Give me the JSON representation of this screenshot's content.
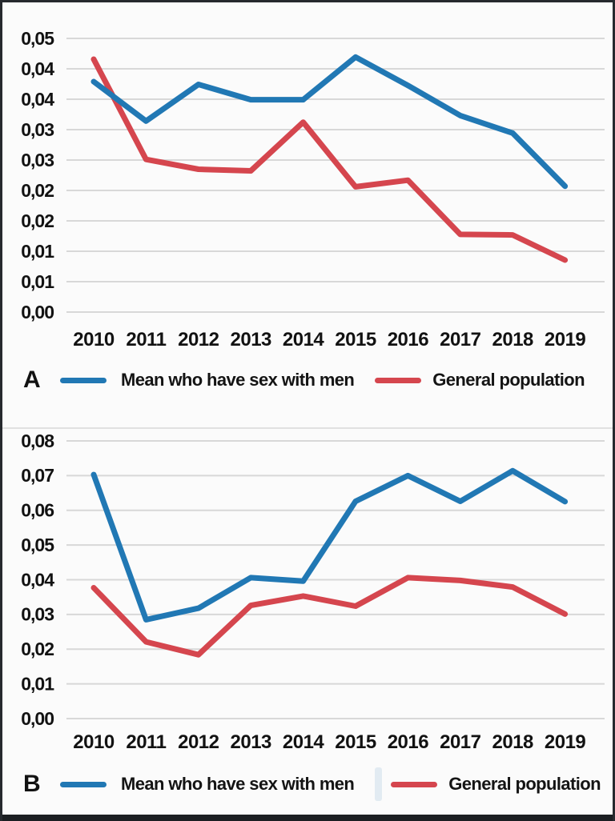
{
  "figure": {
    "background": "#fbfbfb",
    "border_color": "#26292e",
    "gridline_color": "#d8d8d8",
    "text_color": "#121212"
  },
  "panels": [
    {
      "label": "A",
      "legend": [
        {
          "name": "Mean who have sex with men",
          "color": "#2178b4"
        },
        {
          "name": "General population",
          "color": "#d5464e"
        }
      ]
    },
    {
      "label": "B",
      "legend": [
        {
          "name": "Mean who have sex with men",
          "color": "#2178b4"
        },
        {
          "name": "General population",
          "color": "#d5464e"
        }
      ]
    }
  ],
  "chart_data": [
    {
      "panel": "A",
      "type": "line",
      "title": "",
      "xlabel": "",
      "ylabel": "",
      "grid": true,
      "legend_position": "bottom",
      "categories": [
        "2010",
        "2011",
        "2012",
        "2013",
        "2014",
        "2015",
        "2016",
        "2017",
        "2018",
        "2019"
      ],
      "ylim": [
        0,
        0.05
      ],
      "ytick_labels_top_to_bottom": [
        "0,05",
        "0,04",
        "0,04",
        "0,03",
        "0,03",
        "0,02",
        "0,02",
        "0,01",
        "0,01",
        "0,00"
      ],
      "series": [
        {
          "name": "Mean who have sex with men",
          "color": "#2178b4",
          "values": [
            0.0421,
            0.0349,
            0.0416,
            0.0388,
            0.0388,
            0.0466,
            0.0414,
            0.0359,
            0.0327,
            0.023
          ]
        },
        {
          "name": "General population",
          "color": "#d5464e",
          "values": [
            0.0462,
            0.0279,
            0.0261,
            0.0258,
            0.0347,
            0.0229,
            0.0241,
            0.0142,
            0.0141,
            0.0095
          ]
        }
      ]
    },
    {
      "panel": "B",
      "type": "line",
      "title": "",
      "xlabel": "",
      "ylabel": "",
      "grid": true,
      "legend_position": "bottom",
      "categories": [
        "2010",
        "2011",
        "2012",
        "2013",
        "2014",
        "2015",
        "2016",
        "2017",
        "2018",
        "2019"
      ],
      "ylim": [
        0,
        0.08
      ],
      "ytick_labels_top_to_bottom": [
        "0,08",
        "0,07",
        "0,06",
        "0,05",
        "0,04",
        "0,03",
        "0,02",
        "0,01",
        "0,00"
      ],
      "series": [
        {
          "name": "Mean who have sex with men",
          "color": "#2178b4",
          "values": [
            0.0703,
            0.0285,
            0.0318,
            0.0406,
            0.0396,
            0.0626,
            0.07,
            0.0626,
            0.0714,
            0.0625
          ]
        },
        {
          "name": "General population",
          "color": "#d5464e",
          "values": [
            0.0377,
            0.0221,
            0.0184,
            0.0326,
            0.0353,
            0.0324,
            0.0406,
            0.0398,
            0.0379,
            0.0301
          ]
        }
      ]
    }
  ]
}
